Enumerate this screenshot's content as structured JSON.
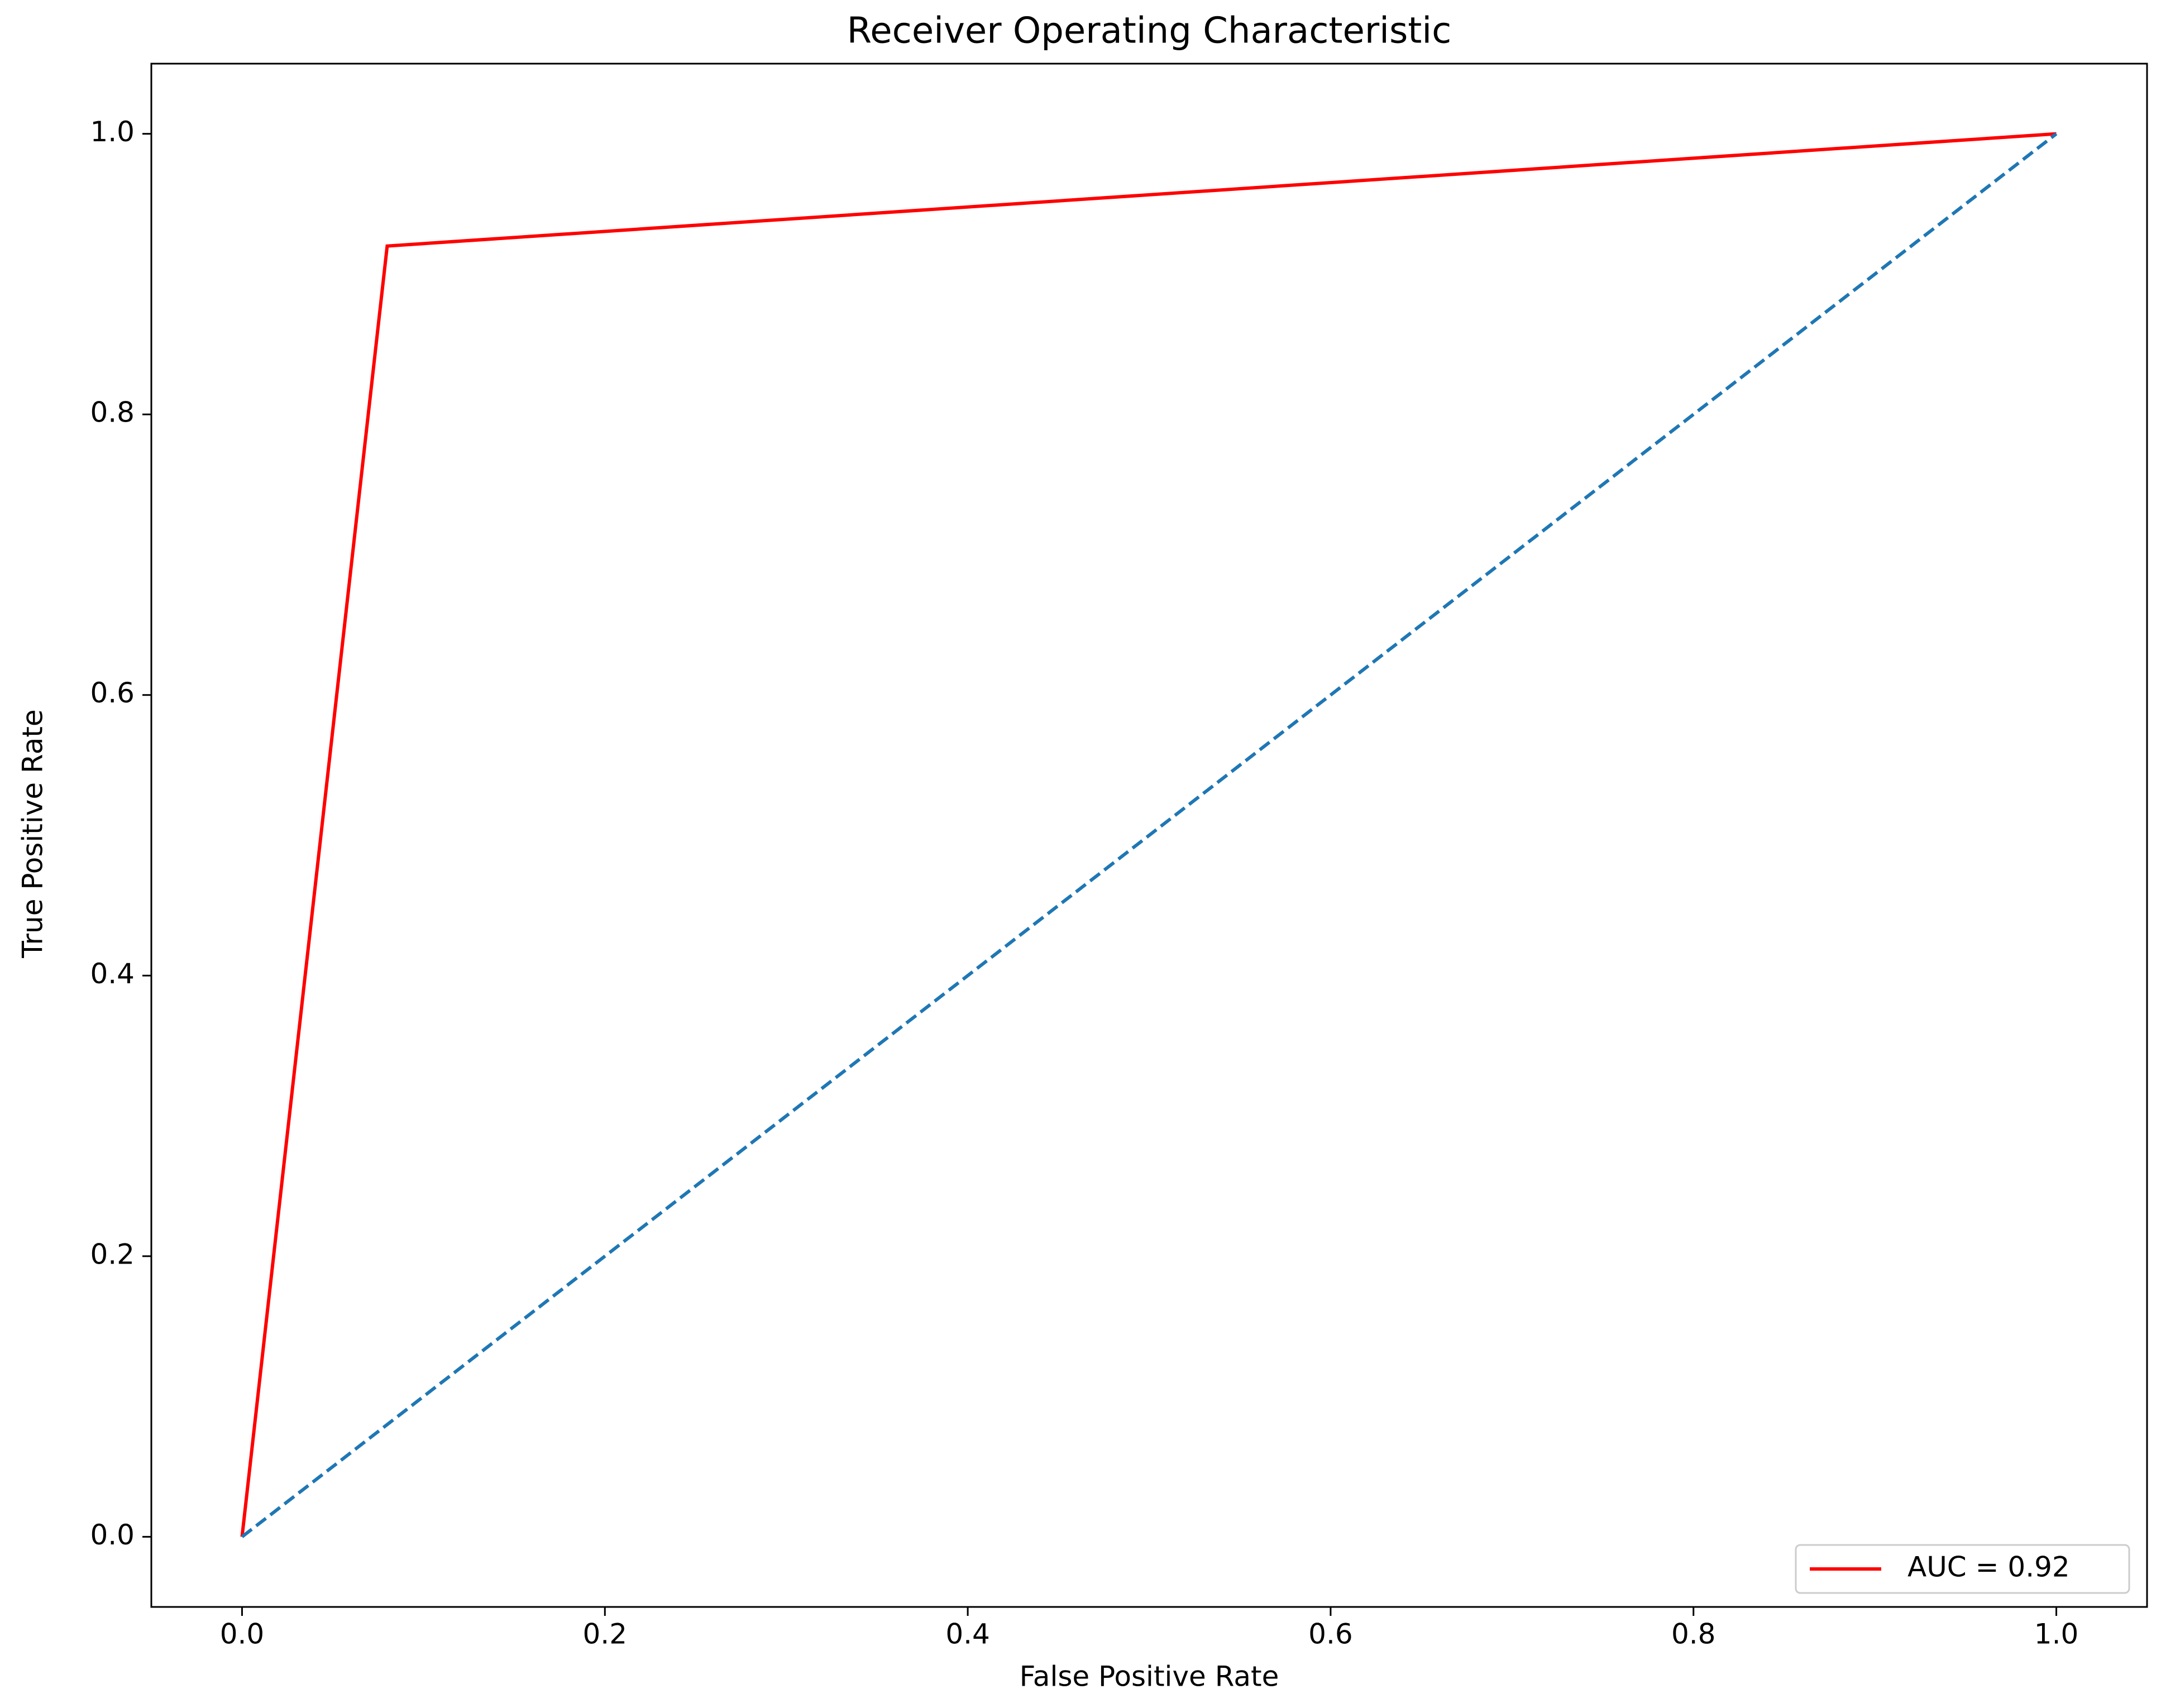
{
  "chart_data": {
    "type": "line",
    "title": "Receiver Operating Characteristic",
    "x_label": "False Positive Rate",
    "y_label": "True Positive Rate",
    "series": [
      {
        "name": "AUC = 0.92",
        "color": "#ff0000",
        "x": [
          0,
          0.08,
          1
        ],
        "values": [
          0,
          0.92,
          1
        ]
      },
      {
        "color": "#1f77b4",
        "x": [
          0,
          1
        ],
        "values": [
          0,
          1
        ],
        "dashed": true
      }
    ],
    "xlim": [
      -0.05,
      1.05
    ],
    "ylim": [
      -0.05,
      1.05
    ],
    "xticks": [
      {
        "value": 0,
        "label": "0.0"
      },
      0.2,
      0.4,
      0.6,
      0.8,
      {
        "value": 1,
        "label": "1.0"
      }
    ],
    "yticks": [
      {
        "value": 0,
        "label": "0.0"
      },
      0.2,
      0.4,
      0.6,
      0.8,
      {
        "value": 1,
        "label": "1.0"
      }
    ],
    "grid": false,
    "legend": "lower right"
  }
}
